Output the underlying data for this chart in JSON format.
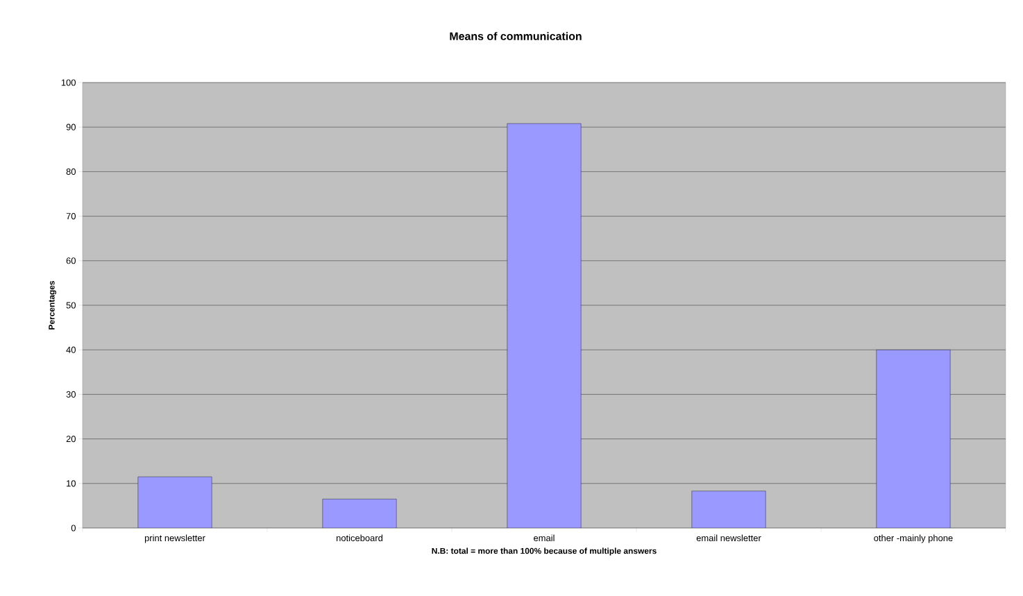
{
  "chart_data": {
    "type": "bar",
    "title": "Means of communication",
    "xlabel": "N.B: total = more than 100% because of multiple answers",
    "ylabel": "Percentages",
    "categories": [
      "print newsletter",
      "noticeboard",
      "email",
      "email newsletter",
      "other -mainly phone"
    ],
    "values": [
      11.5,
      6.5,
      90.8,
      8.3,
      40
    ],
    "color": "#9999ff",
    "ylim": [
      0,
      100
    ],
    "yticks": [
      0,
      10,
      20,
      30,
      40,
      50,
      60,
      70,
      80,
      90,
      100
    ],
    "grid": "y"
  }
}
